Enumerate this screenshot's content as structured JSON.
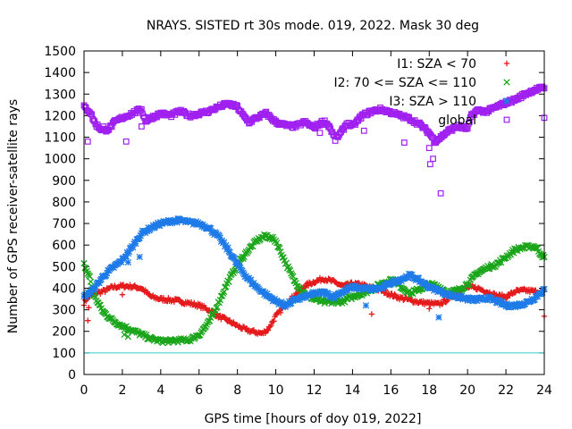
{
  "chart_data": {
    "type": "scatter",
    "title": "NRAYS. SISTED rt 30s mode. 019, 2022. Mask 30 deg",
    "xlabel": "GPS time [hours of doy 019, 2022]",
    "ylabel": "Number of GPS receiver-satellite rays",
    "xlim": [
      0,
      24
    ],
    "ylim": [
      0,
      1500
    ],
    "xticks": [
      0,
      2,
      4,
      6,
      8,
      10,
      12,
      14,
      16,
      18,
      20,
      22,
      24
    ],
    "yticks": [
      0,
      100,
      200,
      300,
      400,
      500,
      600,
      700,
      800,
      900,
      1000,
      1100,
      1200,
      1300,
      1400,
      1500
    ],
    "grid": false,
    "legend_position": "top-right",
    "reference_line": {
      "y": 100,
      "color": "#33cccc"
    },
    "series": [
      {
        "name": "I1: SZA < 70",
        "marker": "+",
        "color": "#e41a1c",
        "points": [
          [
            0.0,
            330
          ],
          [
            0.2,
            360
          ],
          [
            0.5,
            375
          ],
          [
            1.0,
            385
          ],
          [
            1.5,
            405
          ],
          [
            2.0,
            410
          ],
          [
            2.5,
            408
          ],
          [
            3.0,
            400
          ],
          [
            3.5,
            360
          ],
          [
            4.0,
            350
          ],
          [
            4.5,
            345
          ],
          [
            5.0,
            340
          ],
          [
            5.5,
            330
          ],
          [
            6.0,
            320
          ],
          [
            6.5,
            300
          ],
          [
            7.0,
            270
          ],
          [
            7.5,
            250
          ],
          [
            8.0,
            225
          ],
          [
            8.5,
            205
          ],
          [
            9.0,
            195
          ],
          [
            9.3,
            190
          ],
          [
            9.6,
            210
          ],
          [
            10.0,
            270
          ],
          [
            10.5,
            320
          ],
          [
            11.0,
            370
          ],
          [
            11.5,
            410
          ],
          [
            12.0,
            430
          ],
          [
            12.5,
            445
          ],
          [
            13.0,
            430
          ],
          [
            13.5,
            410
          ],
          [
            14.0,
            420
          ],
          [
            14.5,
            415
          ],
          [
            15.0,
            400
          ],
          [
            15.5,
            390
          ],
          [
            16.0,
            370
          ],
          [
            16.5,
            355
          ],
          [
            17.0,
            345
          ],
          [
            17.5,
            335
          ],
          [
            18.0,
            330
          ],
          [
            18.5,
            325
          ],
          [
            19.0,
            350
          ],
          [
            19.5,
            390
          ],
          [
            20.0,
            405
          ],
          [
            20.5,
            400
          ],
          [
            21.0,
            385
          ],
          [
            21.5,
            365
          ],
          [
            22.0,
            360
          ],
          [
            22.5,
            385
          ],
          [
            23.0,
            390
          ],
          [
            23.5,
            385
          ],
          [
            24.0,
            380
          ]
        ],
        "outliers": [
          [
            0.2,
            250
          ],
          [
            0.25,
            310
          ],
          [
            2.0,
            370
          ],
          [
            15.0,
            280
          ],
          [
            18.0,
            305
          ],
          [
            23.5,
            380
          ],
          [
            24.0,
            270
          ]
        ]
      },
      {
        "name": "I2: 70 <= SZA <= 110",
        "marker": "x",
        "color": "#1aa51a",
        "points": [
          [
            0.0,
            510
          ],
          [
            0.3,
            450
          ],
          [
            0.5,
            370
          ],
          [
            1.0,
            290
          ],
          [
            1.5,
            250
          ],
          [
            2.0,
            225
          ],
          [
            2.5,
            205
          ],
          [
            3.0,
            185
          ],
          [
            3.5,
            165
          ],
          [
            4.0,
            155
          ],
          [
            4.5,
            155
          ],
          [
            5.0,
            158
          ],
          [
            5.5,
            160
          ],
          [
            6.0,
            185
          ],
          [
            6.5,
            240
          ],
          [
            7.0,
            330
          ],
          [
            7.5,
            430
          ],
          [
            8.0,
            510
          ],
          [
            8.5,
            570
          ],
          [
            9.0,
            620
          ],
          [
            9.5,
            645
          ],
          [
            10.0,
            620
          ],
          [
            10.5,
            520
          ],
          [
            11.0,
            430
          ],
          [
            11.5,
            375
          ],
          [
            12.0,
            350
          ],
          [
            12.5,
            335
          ],
          [
            13.0,
            335
          ],
          [
            13.5,
            340
          ],
          [
            14.0,
            360
          ],
          [
            14.5,
            375
          ],
          [
            15.0,
            395
          ],
          [
            15.5,
            420
          ],
          [
            16.0,
            440
          ],
          [
            16.5,
            410
          ],
          [
            17.0,
            375
          ],
          [
            17.5,
            395
          ],
          [
            18.0,
            420
          ],
          [
            18.5,
            405
          ],
          [
            19.0,
            380
          ],
          [
            19.5,
            390
          ],
          [
            20.0,
            420
          ],
          [
            20.5,
            470
          ],
          [
            21.0,
            495
          ],
          [
            21.5,
            510
          ],
          [
            22.0,
            545
          ],
          [
            22.5,
            580
          ],
          [
            23.0,
            590
          ],
          [
            23.5,
            595
          ],
          [
            24.0,
            540
          ]
        ],
        "outliers": [
          [
            2.1,
            185
          ],
          [
            2.3,
            175
          ]
        ]
      },
      {
        "name": "I3: SZA > 110",
        "marker": "*",
        "color": "#1e7be8",
        "points": [
          [
            0.0,
            360
          ],
          [
            0.5,
            395
          ],
          [
            1.0,
            455
          ],
          [
            1.5,
            495
          ],
          [
            2.0,
            530
          ],
          [
            2.5,
            590
          ],
          [
            3.0,
            655
          ],
          [
            3.5,
            680
          ],
          [
            4.0,
            700
          ],
          [
            4.5,
            710
          ],
          [
            5.0,
            715
          ],
          [
            5.5,
            705
          ],
          [
            6.0,
            700
          ],
          [
            6.5,
            680
          ],
          [
            7.0,
            640
          ],
          [
            7.5,
            580
          ],
          [
            8.0,
            510
          ],
          [
            8.5,
            450
          ],
          [
            9.0,
            405
          ],
          [
            9.5,
            370
          ],
          [
            10.0,
            340
          ],
          [
            10.5,
            320
          ],
          [
            11.0,
            345
          ],
          [
            11.5,
            360
          ],
          [
            12.0,
            375
          ],
          [
            12.5,
            380
          ],
          [
            13.0,
            360
          ],
          [
            13.5,
            385
          ],
          [
            14.0,
            405
          ],
          [
            14.5,
            400
          ],
          [
            15.0,
            395
          ],
          [
            15.5,
            400
          ],
          [
            16.0,
            425
          ],
          [
            16.5,
            440
          ],
          [
            17.0,
            460
          ],
          [
            17.5,
            435
          ],
          [
            18.0,
            405
          ],
          [
            18.5,
            390
          ],
          [
            19.0,
            370
          ],
          [
            19.5,
            360
          ],
          [
            20.0,
            350
          ],
          [
            20.5,
            345
          ],
          [
            21.0,
            355
          ],
          [
            21.5,
            340
          ],
          [
            22.0,
            320
          ],
          [
            22.5,
            320
          ],
          [
            23.0,
            330
          ],
          [
            23.5,
            355
          ],
          [
            24.0,
            395
          ]
        ],
        "outliers": [
          [
            2.3,
            520
          ],
          [
            2.9,
            545
          ],
          [
            14.7,
            320
          ],
          [
            18.5,
            265
          ]
        ]
      },
      {
        "name": "global",
        "marker": "square",
        "color": "#a020f0",
        "points": [
          [
            0.0,
            1240
          ],
          [
            0.3,
            1220
          ],
          [
            0.6,
            1160
          ],
          [
            1.0,
            1130
          ],
          [
            1.3,
            1140
          ],
          [
            1.6,
            1170
          ],
          [
            2.0,
            1190
          ],
          [
            2.5,
            1210
          ],
          [
            3.0,
            1230
          ],
          [
            3.2,
            1175
          ],
          [
            3.5,
            1190
          ],
          [
            4.0,
            1210
          ],
          [
            4.5,
            1200
          ],
          [
            5.0,
            1220
          ],
          [
            5.5,
            1200
          ],
          [
            6.0,
            1210
          ],
          [
            6.5,
            1220
          ],
          [
            7.0,
            1240
          ],
          [
            7.5,
            1255
          ],
          [
            8.0,
            1240
          ],
          [
            8.3,
            1200
          ],
          [
            8.6,
            1170
          ],
          [
            9.0,
            1190
          ],
          [
            9.5,
            1210
          ],
          [
            10.0,
            1170
          ],
          [
            10.5,
            1155
          ],
          [
            11.0,
            1150
          ],
          [
            11.5,
            1170
          ],
          [
            12.0,
            1145
          ],
          [
            12.5,
            1175
          ],
          [
            12.8,
            1150
          ],
          [
            13.1,
            1090
          ],
          [
            13.4,
            1120
          ],
          [
            13.7,
            1165
          ],
          [
            14.0,
            1150
          ],
          [
            14.5,
            1200
          ],
          [
            15.0,
            1220
          ],
          [
            15.5,
            1230
          ],
          [
            16.0,
            1215
          ],
          [
            16.5,
            1200
          ],
          [
            17.0,
            1185
          ],
          [
            17.5,
            1160
          ],
          [
            18.0,
            1120
          ],
          [
            18.3,
            1080
          ],
          [
            18.6,
            1100
          ],
          [
            19.0,
            1130
          ],
          [
            19.5,
            1150
          ],
          [
            20.0,
            1140
          ],
          [
            20.2,
            1200
          ],
          [
            20.5,
            1225
          ],
          [
            21.0,
            1220
          ],
          [
            21.5,
            1240
          ],
          [
            22.0,
            1260
          ],
          [
            22.5,
            1275
          ],
          [
            23.0,
            1300
          ],
          [
            23.5,
            1320
          ],
          [
            24.0,
            1330
          ]
        ],
        "outliers": [
          [
            0.2,
            1080
          ],
          [
            1.0,
            1150
          ],
          [
            2.2,
            1080
          ],
          [
            3.0,
            1150
          ],
          [
            12.3,
            1120
          ],
          [
            14.6,
            1130
          ],
          [
            16.7,
            1075
          ],
          [
            18.0,
            1050
          ],
          [
            18.05,
            975
          ],
          [
            18.2,
            1000
          ],
          [
            18.6,
            840
          ],
          [
            24.0,
            1190
          ]
        ]
      }
    ]
  }
}
